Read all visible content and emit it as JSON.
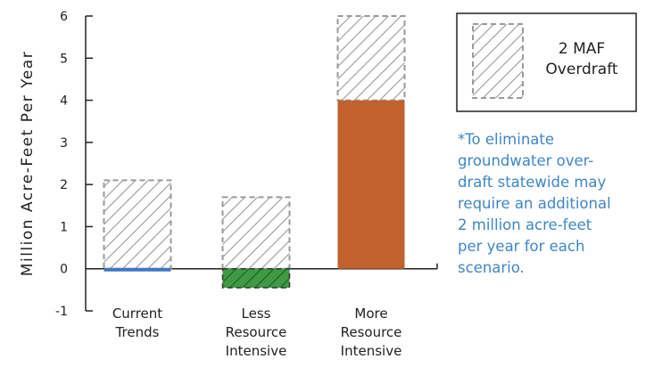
{
  "chart_data": {
    "type": "bar",
    "categories": [
      [
        "Current",
        "Trends"
      ],
      [
        "Less",
        "Resource",
        "Intensive"
      ],
      [
        "More",
        "Resource",
        "Intensive"
      ]
    ],
    "series": [
      {
        "name": "",
        "values": [
          -0.05,
          -0.45,
          4.0
        ]
      },
      {
        "name": "2 MAF Overdraft",
        "values": [
          2.1,
          1.7,
          6.0
        ]
      }
    ],
    "ylabel": "Million Acre-Feet Per Year",
    "ylim": [
      -1,
      6
    ],
    "yticks": [
      -1,
      0,
      1,
      2,
      3,
      4,
      5,
      6
    ],
    "legend": {
      "lines": [
        "2 MAF",
        "Overdraft"
      ],
      "position": "top-right"
    },
    "colors": {
      "current_trends": "#3a78c3",
      "less_resource": "#3f9a43",
      "more_resource": "#c0612e",
      "hatch": "#9a9a9a",
      "note_text": "#3f86c6"
    }
  },
  "note": {
    "lines": [
      "*To eliminate",
      "groundwater over-",
      "draft statewide may",
      "require an additional",
      "2 million acre-feet",
      "per year for each",
      "scenario."
    ]
  }
}
